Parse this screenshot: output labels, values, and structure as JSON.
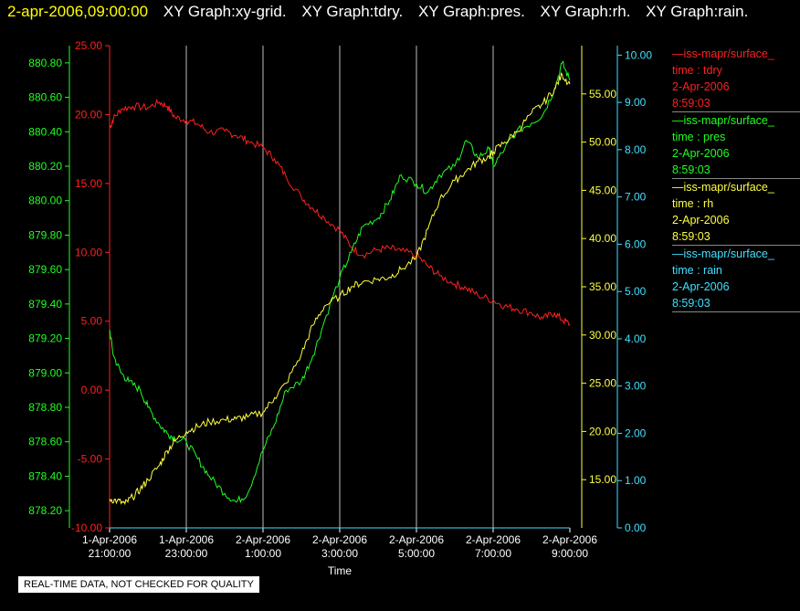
{
  "header": {
    "timestamp": "2-apr-2006,09:00:00",
    "graph_titles": [
      "XY Graph:xy-grid.",
      "XY Graph:tdry.",
      "XY Graph:pres.",
      "XY Graph:rh.",
      "XY Graph:rain."
    ]
  },
  "quality_note": "REAL-TIME DATA, NOT CHECKED FOR QUALITY",
  "legend": [
    {
      "name": "—iss-mapr/surface_",
      "field": "time : tdry",
      "date": "2-Apr-2006",
      "time": "8:59:03",
      "color": "#ff2020"
    },
    {
      "name": "—iss-mapr/surface_",
      "field": "time : pres",
      "date": "2-Apr-2006",
      "time": "8:59:03",
      "color": "#20ff20"
    },
    {
      "name": "—iss-mapr/surface_",
      "field": "time : rh",
      "date": "2-Apr-2006",
      "time": "8:59:03",
      "color": "#ffff40"
    },
    {
      "name": "—iss-mapr/surface_",
      "field": "time : rain",
      "date": "2-Apr-2006",
      "time": "8:59:03",
      "color": "#40e0ff"
    }
  ],
  "chart_data": {
    "type": "line",
    "xlabel": "Time",
    "x_ticks": [
      {
        "line1": "1-Apr-2006",
        "line2": "21:00:00"
      },
      {
        "line1": "1-Apr-2006",
        "line2": "23:00:00"
      },
      {
        "line1": "2-Apr-2006",
        "line2": "1:00:00"
      },
      {
        "line1": "2-Apr-2006",
        "line2": "3:00:00"
      },
      {
        "line1": "2-Apr-2006",
        "line2": "5:00:00"
      },
      {
        "line1": "2-Apr-2006",
        "line2": "7:00:00"
      },
      {
        "line1": "2-Apr-2006",
        "line2": "9:00:00"
      }
    ],
    "x_range_hours": [
      21,
      33
    ],
    "axes": {
      "tdry": {
        "color": "#ff2020",
        "range": [
          -10,
          25
        ],
        "ticks": [
          "-10.00",
          "-5.00",
          "0.00",
          "5.00",
          "10.00",
          "15.00",
          "20.00",
          "25.00"
        ]
      },
      "pres": {
        "color": "#20ff20",
        "range": [
          878.1,
          880.9
        ],
        "ticks": [
          "878.20",
          "878.40",
          "878.60",
          "878.80",
          "879.00",
          "879.20",
          "879.40",
          "879.60",
          "879.80",
          "880.00",
          "880.20",
          "880.40",
          "880.60",
          "880.80"
        ]
      },
      "rh": {
        "color": "#ffff40",
        "range": [
          10,
          60
        ],
        "ticks": [
          "15.00",
          "20.00",
          "25.00",
          "30.00",
          "35.00",
          "40.00",
          "45.00",
          "50.00",
          "55.00"
        ]
      },
      "rain": {
        "color": "#40e0ff",
        "range": [
          0,
          10.2
        ],
        "ticks": [
          "0.00",
          "1.00",
          "2.00",
          "3.00",
          "4.00",
          "5.00",
          "6.00",
          "7.00",
          "8.00",
          "9.00",
          "10.00"
        ]
      }
    },
    "series": [
      {
        "name": "tdry",
        "axis": "tdry",
        "color": "#ff2020",
        "x": [
          21.0,
          21.1,
          21.3,
          21.6,
          22.0,
          22.3,
          22.5,
          22.7,
          23.0,
          23.3,
          23.6,
          24.0,
          24.3,
          24.6,
          25.0,
          25.3,
          25.6,
          26.0,
          26.3,
          26.6,
          27.0,
          27.3,
          27.6,
          28.0,
          28.3,
          28.6,
          29.0,
          29.3,
          29.6,
          30.0,
          30.3,
          30.6,
          31.0,
          31.3,
          31.6,
          32.0,
          32.3,
          32.6,
          32.8,
          33.0
        ],
        "y": [
          19.0,
          19.7,
          20.4,
          20.6,
          20.5,
          20.9,
          20.6,
          19.8,
          19.6,
          19.3,
          18.7,
          18.8,
          18.5,
          18.1,
          17.6,
          16.8,
          15.5,
          14.0,
          13.2,
          12.5,
          11.6,
          10.4,
          9.8,
          10.2,
          10.3,
          10.1,
          9.8,
          9.0,
          8.3,
          7.7,
          7.4,
          6.9,
          6.5,
          6.1,
          5.9,
          5.6,
          5.2,
          5.6,
          5.1,
          4.8
        ]
      },
      {
        "name": "pres",
        "axis": "pres",
        "color": "#20ff20",
        "x": [
          21.0,
          21.1,
          21.3,
          21.5,
          21.8,
          22.0,
          22.3,
          22.5,
          22.7,
          23.0,
          23.3,
          23.6,
          24.0,
          24.3,
          24.6,
          25.0,
          25.3,
          25.6,
          26.0,
          26.3,
          26.6,
          27.0,
          27.3,
          27.6,
          28.0,
          28.3,
          28.6,
          29.0,
          29.3,
          29.6,
          30.0,
          30.3,
          30.6,
          30.9,
          31.0,
          31.3,
          31.6,
          32.0,
          32.3,
          32.6,
          32.8,
          33.0
        ],
        "y": [
          879.25,
          879.1,
          879.0,
          878.95,
          878.9,
          878.8,
          878.7,
          878.65,
          878.62,
          878.6,
          878.5,
          878.4,
          878.3,
          878.25,
          878.3,
          878.55,
          878.7,
          878.9,
          878.95,
          879.1,
          879.3,
          879.55,
          879.7,
          879.85,
          879.9,
          880.0,
          880.15,
          880.1,
          880.05,
          880.15,
          880.2,
          880.35,
          880.25,
          880.3,
          880.2,
          880.3,
          880.4,
          880.45,
          880.5,
          880.65,
          880.8,
          880.7
        ]
      },
      {
        "name": "rh",
        "axis": "rh",
        "color": "#ffff40",
        "x": [
          21.0,
          21.2,
          21.4,
          21.6,
          21.8,
          22.0,
          22.3,
          22.5,
          22.7,
          23.0,
          23.3,
          23.6,
          24.0,
          24.3,
          24.6,
          25.0,
          25.3,
          25.6,
          26.0,
          26.3,
          26.6,
          27.0,
          27.3,
          27.6,
          28.0,
          28.3,
          28.6,
          29.0,
          29.3,
          29.6,
          30.0,
          30.3,
          30.6,
          30.9,
          31.0,
          31.3,
          31.6,
          32.0,
          32.3,
          32.6,
          32.8,
          33.0
        ],
        "y": [
          13.0,
          12.8,
          12.5,
          13.2,
          14.0,
          15.0,
          16.5,
          18.0,
          19.0,
          20.0,
          20.5,
          21.0,
          21.2,
          21.3,
          21.5,
          22.0,
          23.5,
          25.0,
          28.0,
          31.0,
          33.0,
          34.0,
          35.0,
          35.5,
          35.8,
          36.0,
          36.8,
          38.0,
          41.0,
          44.0,
          46.0,
          47.0,
          48.0,
          48.5,
          49.0,
          50.0,
          51.0,
          53.0,
          54.0,
          55.5,
          57.0,
          56.0
        ]
      },
      {
        "name": "rain",
        "axis": "rain",
        "color": "#40e0ff",
        "x": [
          21.0,
          33.0
        ],
        "y": [
          0.0,
          0.0
        ]
      }
    ]
  }
}
